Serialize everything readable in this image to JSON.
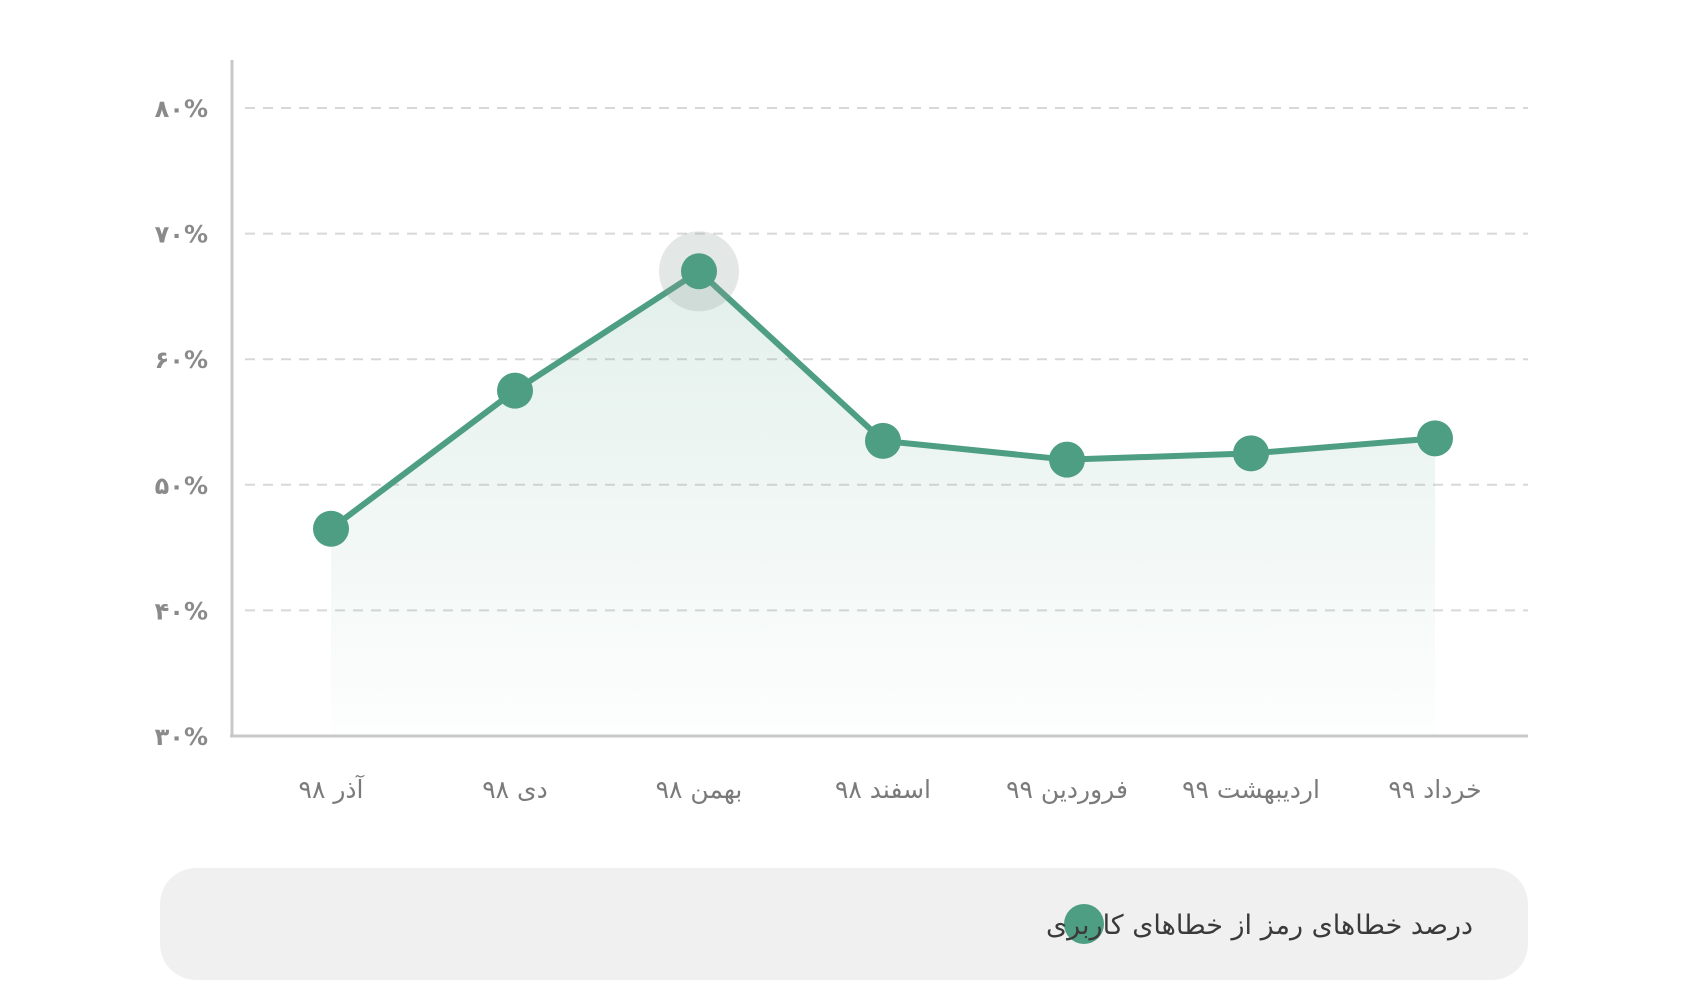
{
  "chart_data": {
    "type": "line",
    "categories": [
      "آذر ۹۸",
      "دی ۹۸",
      "بهمن ۹۸",
      "اسفند ۹۸",
      "فروردین ۹۹",
      "اردیبهشت ۹۹",
      "خرداد ۹۹"
    ],
    "series": [
      {
        "name": "درصد خطاهای رمز از خطاهای کاربری",
        "values": [
          46.5,
          57.5,
          67,
          53.5,
          52,
          52.5,
          53.7
        ],
        "color": "#4e9e84"
      }
    ],
    "yticks": [
      30,
      40,
      50,
      60,
      70,
      80
    ],
    "ytick_labels": [
      "۳۰%",
      "۴۰%",
      "۵۰%",
      "۶۰%",
      "۷۰%",
      "۸۰%"
    ],
    "ylim": [
      30,
      80
    ],
    "highlighted_index": 2,
    "grid": "horizontal-dashed",
    "legend_position": "bottom",
    "area_fill": true,
    "title": "",
    "xlabel": "",
    "ylabel": ""
  }
}
